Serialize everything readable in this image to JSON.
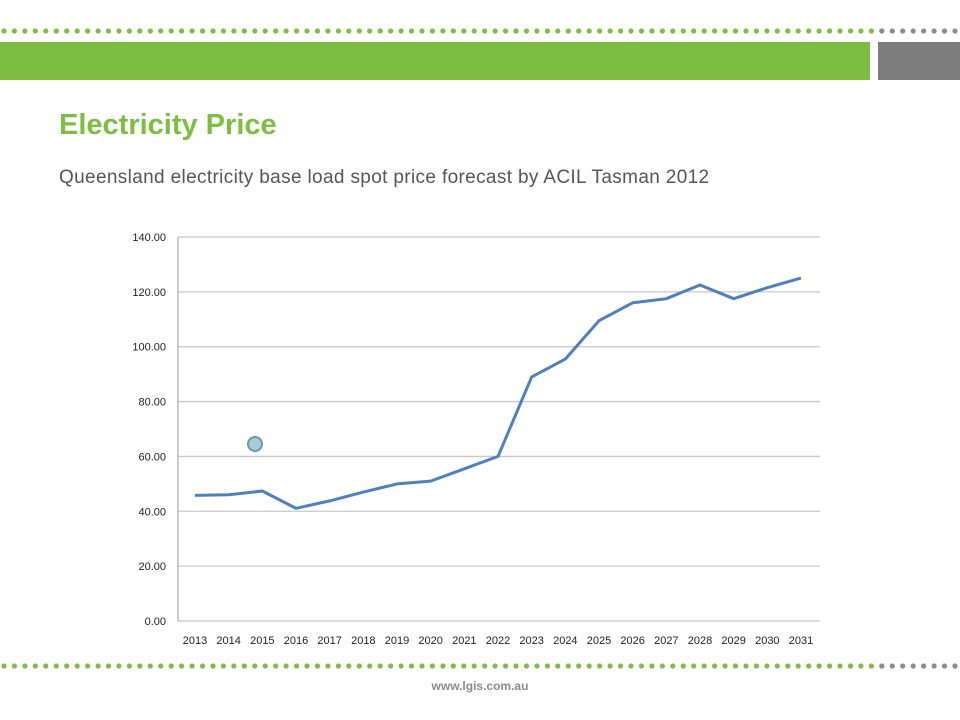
{
  "slide": {
    "title": "Electricity Price",
    "subtitle": "Queensland electricity base load spot price forecast by ACIL Tasman 2012",
    "footer_url": "www.lgis.com.au",
    "colors": {
      "accent_green": "#7cbd42",
      "accent_gray": "#7d7d7d",
      "dot_green": "#7cbd42",
      "dot_gray": "#8c8c8c"
    }
  },
  "chart_data": {
    "type": "line",
    "title": "",
    "xlabel": "",
    "ylabel": "",
    "ylim": [
      0,
      140
    ],
    "yticks": [
      "0.00",
      "20.00",
      "40.00",
      "60.00",
      "80.00",
      "100.00",
      "120.00",
      "140.00"
    ],
    "categories": [
      "2013",
      "2014",
      "2015",
      "2016",
      "2017",
      "2018",
      "2019",
      "2020",
      "2021",
      "2022",
      "2023",
      "2024",
      "2025",
      "2026",
      "2027",
      "2028",
      "2029",
      "2030",
      "2031"
    ],
    "series": [
      {
        "values": [
          45.8,
          46.0,
          47.4,
          41.1,
          43.8,
          47.0,
          50.0,
          51.0,
          55.5,
          60.0,
          89.0,
          95.5,
          109.5,
          116.0,
          117.5,
          122.5,
          117.5,
          121.5,
          125.0
        ],
        "color": "#4f7fbf"
      }
    ],
    "grid": true,
    "legend": "none"
  }
}
